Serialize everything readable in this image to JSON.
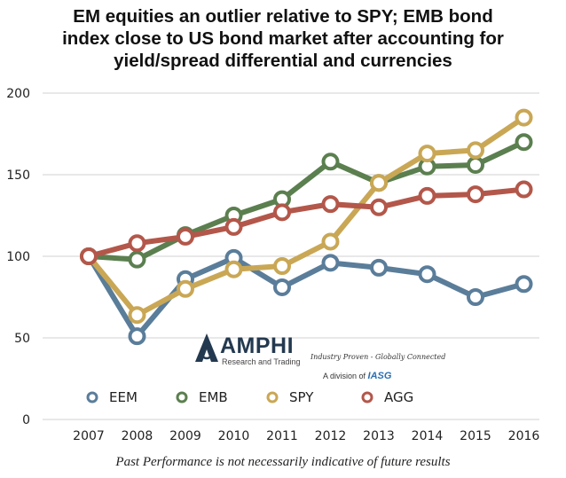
{
  "chart_data": {
    "type": "line",
    "title_lines": [
      "EM equities an outlier relative to SPY; EMB bond",
      "index close to US bond market after accounting for",
      "yield/spread differential and currencies"
    ],
    "x": [
      "2007",
      "2008",
      "2009",
      "2010",
      "2011",
      "2012",
      "2013",
      "2014",
      "2015",
      "2016"
    ],
    "ylim": [
      0,
      200
    ],
    "yticks": [
      "0",
      "50",
      "100",
      "150",
      "200"
    ],
    "grid": true,
    "legend_position": "bottom-left",
    "series": [
      {
        "name": "EEM",
        "color": "#5a7d9a",
        "values": [
          100,
          51,
          86,
          99,
          81,
          96,
          93,
          89,
          75,
          83
        ]
      },
      {
        "name": "EMB",
        "color": "#5b7f4f",
        "values": [
          100,
          98,
          113,
          125,
          135,
          158,
          145,
          155,
          156,
          170
        ]
      },
      {
        "name": "SPY",
        "color": "#c9a755",
        "values": [
          100,
          64,
          80,
          92,
          94,
          109,
          145,
          163,
          165,
          185
        ]
      },
      {
        "name": "AGG",
        "color": "#b3574a",
        "values": [
          100,
          108,
          112,
          118,
          127,
          132,
          130,
          137,
          138,
          141
        ]
      }
    ]
  },
  "logo": {
    "name": "AMPHI",
    "subtitle": "Research and Trading",
    "tagline": "Industry Proven - Globally Connected",
    "division_prefix": "A division of",
    "division_brand": "IASG"
  },
  "footer": "Past Performance is not necessarily indicative of future results"
}
